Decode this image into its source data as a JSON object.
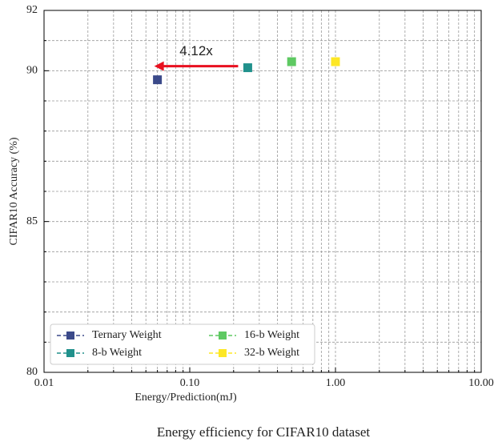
{
  "chart_data": {
    "type": "scatter",
    "xlabel": "Energy/Prediction(mJ)",
    "ylabel": "CIFAR10 Accuracy (%)",
    "caption": "Energy efficiency for CIFAR10 dataset",
    "annotation": "4.12x",
    "annotation_color": "#e8101f",
    "xscale": "log",
    "xlim": [
      0.01,
      10
    ],
    "xticks": [
      0.01,
      {
        "value": 0.1,
        "label": "0.10"
      },
      {
        "value": 1,
        "label": "1.00"
      },
      {
        "value": 10,
        "label": "10.00"
      }
    ],
    "xminorticks": [
      0.02,
      0.03,
      0.04,
      0.05,
      0.06,
      0.07,
      0.08,
      0.09,
      0.2,
      0.3,
      0.4,
      0.5,
      0.6,
      0.7,
      0.8,
      0.9,
      2,
      3,
      4,
      5,
      6,
      7,
      8,
      9
    ],
    "ylim": [
      80,
      92
    ],
    "yticks": [
      80,
      85,
      90,
      92
    ],
    "yminorticks": [
      81,
      82,
      83,
      84,
      86,
      87,
      88,
      89,
      91
    ],
    "grid": true,
    "legend": "lower-left",
    "series": [
      {
        "name": "Ternary Weight",
        "color": "#3b4a8a",
        "x": [
          0.06
        ],
        "values": [
          89.7
        ]
      },
      {
        "name": "8-b Weight",
        "color": "#21918c",
        "x": [
          0.25
        ],
        "values": [
          90.1
        ]
      },
      {
        "name": "16-b Weight",
        "color": "#5ec962",
        "x": [
          0.5
        ],
        "values": [
          90.3
        ]
      },
      {
        "name": "32-b Weight",
        "color": "#fde725",
        "x": [
          1.0
        ],
        "values": [
          90.3
        ]
      }
    ]
  }
}
